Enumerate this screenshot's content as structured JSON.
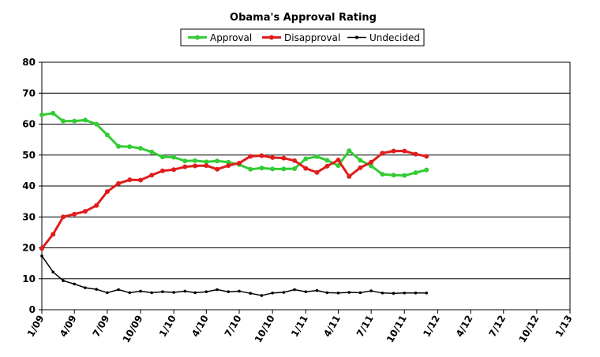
{
  "chart_data": {
    "type": "line",
    "title": "Obama's Approval Rating",
    "ylim": [
      0,
      80
    ],
    "y_ticks": [
      0,
      10,
      20,
      30,
      40,
      50,
      60,
      70,
      80
    ],
    "x_range": [
      "2009-01-01",
      "2013-01-01"
    ],
    "x_ticks": [
      {
        "date": "2009-01-01",
        "label": "1/09"
      },
      {
        "date": "2009-04-01",
        "label": "4/09"
      },
      {
        "date": "2009-07-01",
        "label": "7/09"
      },
      {
        "date": "2009-10-01",
        "label": "10/09"
      },
      {
        "date": "2010-01-01",
        "label": "1/10"
      },
      {
        "date": "2010-04-01",
        "label": "4/10"
      },
      {
        "date": "2010-07-01",
        "label": "7/10"
      },
      {
        "date": "2010-10-01",
        "label": "10/10"
      },
      {
        "date": "2011-01-01",
        "label": "1/11"
      },
      {
        "date": "2011-04-01",
        "label": "4/11"
      },
      {
        "date": "2011-07-01",
        "label": "7/11"
      },
      {
        "date": "2011-10-01",
        "label": "10/11"
      },
      {
        "date": "2012-01-01",
        "label": "1/12"
      },
      {
        "date": "2012-04-01",
        "label": "4/12"
      },
      {
        "date": "2012-07-01",
        "label": "7/12"
      },
      {
        "date": "2012-10-01",
        "label": "10/12"
      },
      {
        "date": "2013-01-01",
        "label": "1/13"
      }
    ],
    "grid": true,
    "legend_position": "top-center",
    "dates": [
      "2009-01-01",
      "2009-02-01",
      "2009-03-01",
      "2009-04-01",
      "2009-05-01",
      "2009-06-01",
      "2009-07-01",
      "2009-08-01",
      "2009-09-01",
      "2009-10-01",
      "2009-11-01",
      "2009-12-01",
      "2010-01-01",
      "2010-02-01",
      "2010-03-01",
      "2010-04-01",
      "2010-05-01",
      "2010-06-01",
      "2010-07-01",
      "2010-08-01",
      "2010-09-01",
      "2010-10-01",
      "2010-11-01",
      "2010-12-01",
      "2011-01-01",
      "2011-02-01",
      "2011-03-01",
      "2011-04-01",
      "2011-05-01",
      "2011-06-01",
      "2011-07-01",
      "2011-08-01",
      "2011-09-01",
      "2011-10-01",
      "2011-11-01",
      "2011-12-01"
    ],
    "series": [
      {
        "name": "Approval",
        "color": "#33cc33",
        "marker": "circle",
        "values": [
          63.0,
          63.5,
          61.0,
          61.0,
          61.3,
          60.0,
          56.5,
          52.8,
          52.7,
          52.2,
          51.0,
          49.4,
          49.3,
          48.1,
          48.2,
          47.8,
          48.1,
          47.7,
          46.9,
          45.4,
          45.8,
          45.5,
          45.5,
          45.6,
          48.8,
          49.5,
          48.3,
          46.6,
          51.4,
          48.3,
          46.5,
          43.8,
          43.5,
          43.4,
          44.3,
          45.2
        ]
      },
      {
        "name": "Disapproval",
        "color": "#e01c1c",
        "marker": "circle",
        "values": [
          19.8,
          24.4,
          30.0,
          30.9,
          31.8,
          33.7,
          38.2,
          40.8,
          42.0,
          41.9,
          43.5,
          44.9,
          45.3,
          46.2,
          46.5,
          46.6,
          45.4,
          46.6,
          47.4,
          49.6,
          49.8,
          49.2,
          49.0,
          48.2,
          45.7,
          44.4,
          46.4,
          48.4,
          43.1,
          45.9,
          47.7,
          50.6,
          51.3,
          51.3,
          50.3,
          49.6
        ]
      },
      {
        "name": "Undecided",
        "color": "#000000",
        "marker": "small-dot",
        "values": [
          17.4,
          12.2,
          9.4,
          8.3,
          7.1,
          6.6,
          5.5,
          6.5,
          5.5,
          6.0,
          5.5,
          5.8,
          5.6,
          6.0,
          5.5,
          5.8,
          6.5,
          5.8,
          6.0,
          5.3,
          4.6,
          5.4,
          5.6,
          6.5,
          5.8,
          6.2,
          5.5,
          5.4,
          5.6,
          5.5,
          6.1,
          5.4,
          5.3,
          5.4,
          5.4,
          5.4
        ]
      }
    ]
  }
}
